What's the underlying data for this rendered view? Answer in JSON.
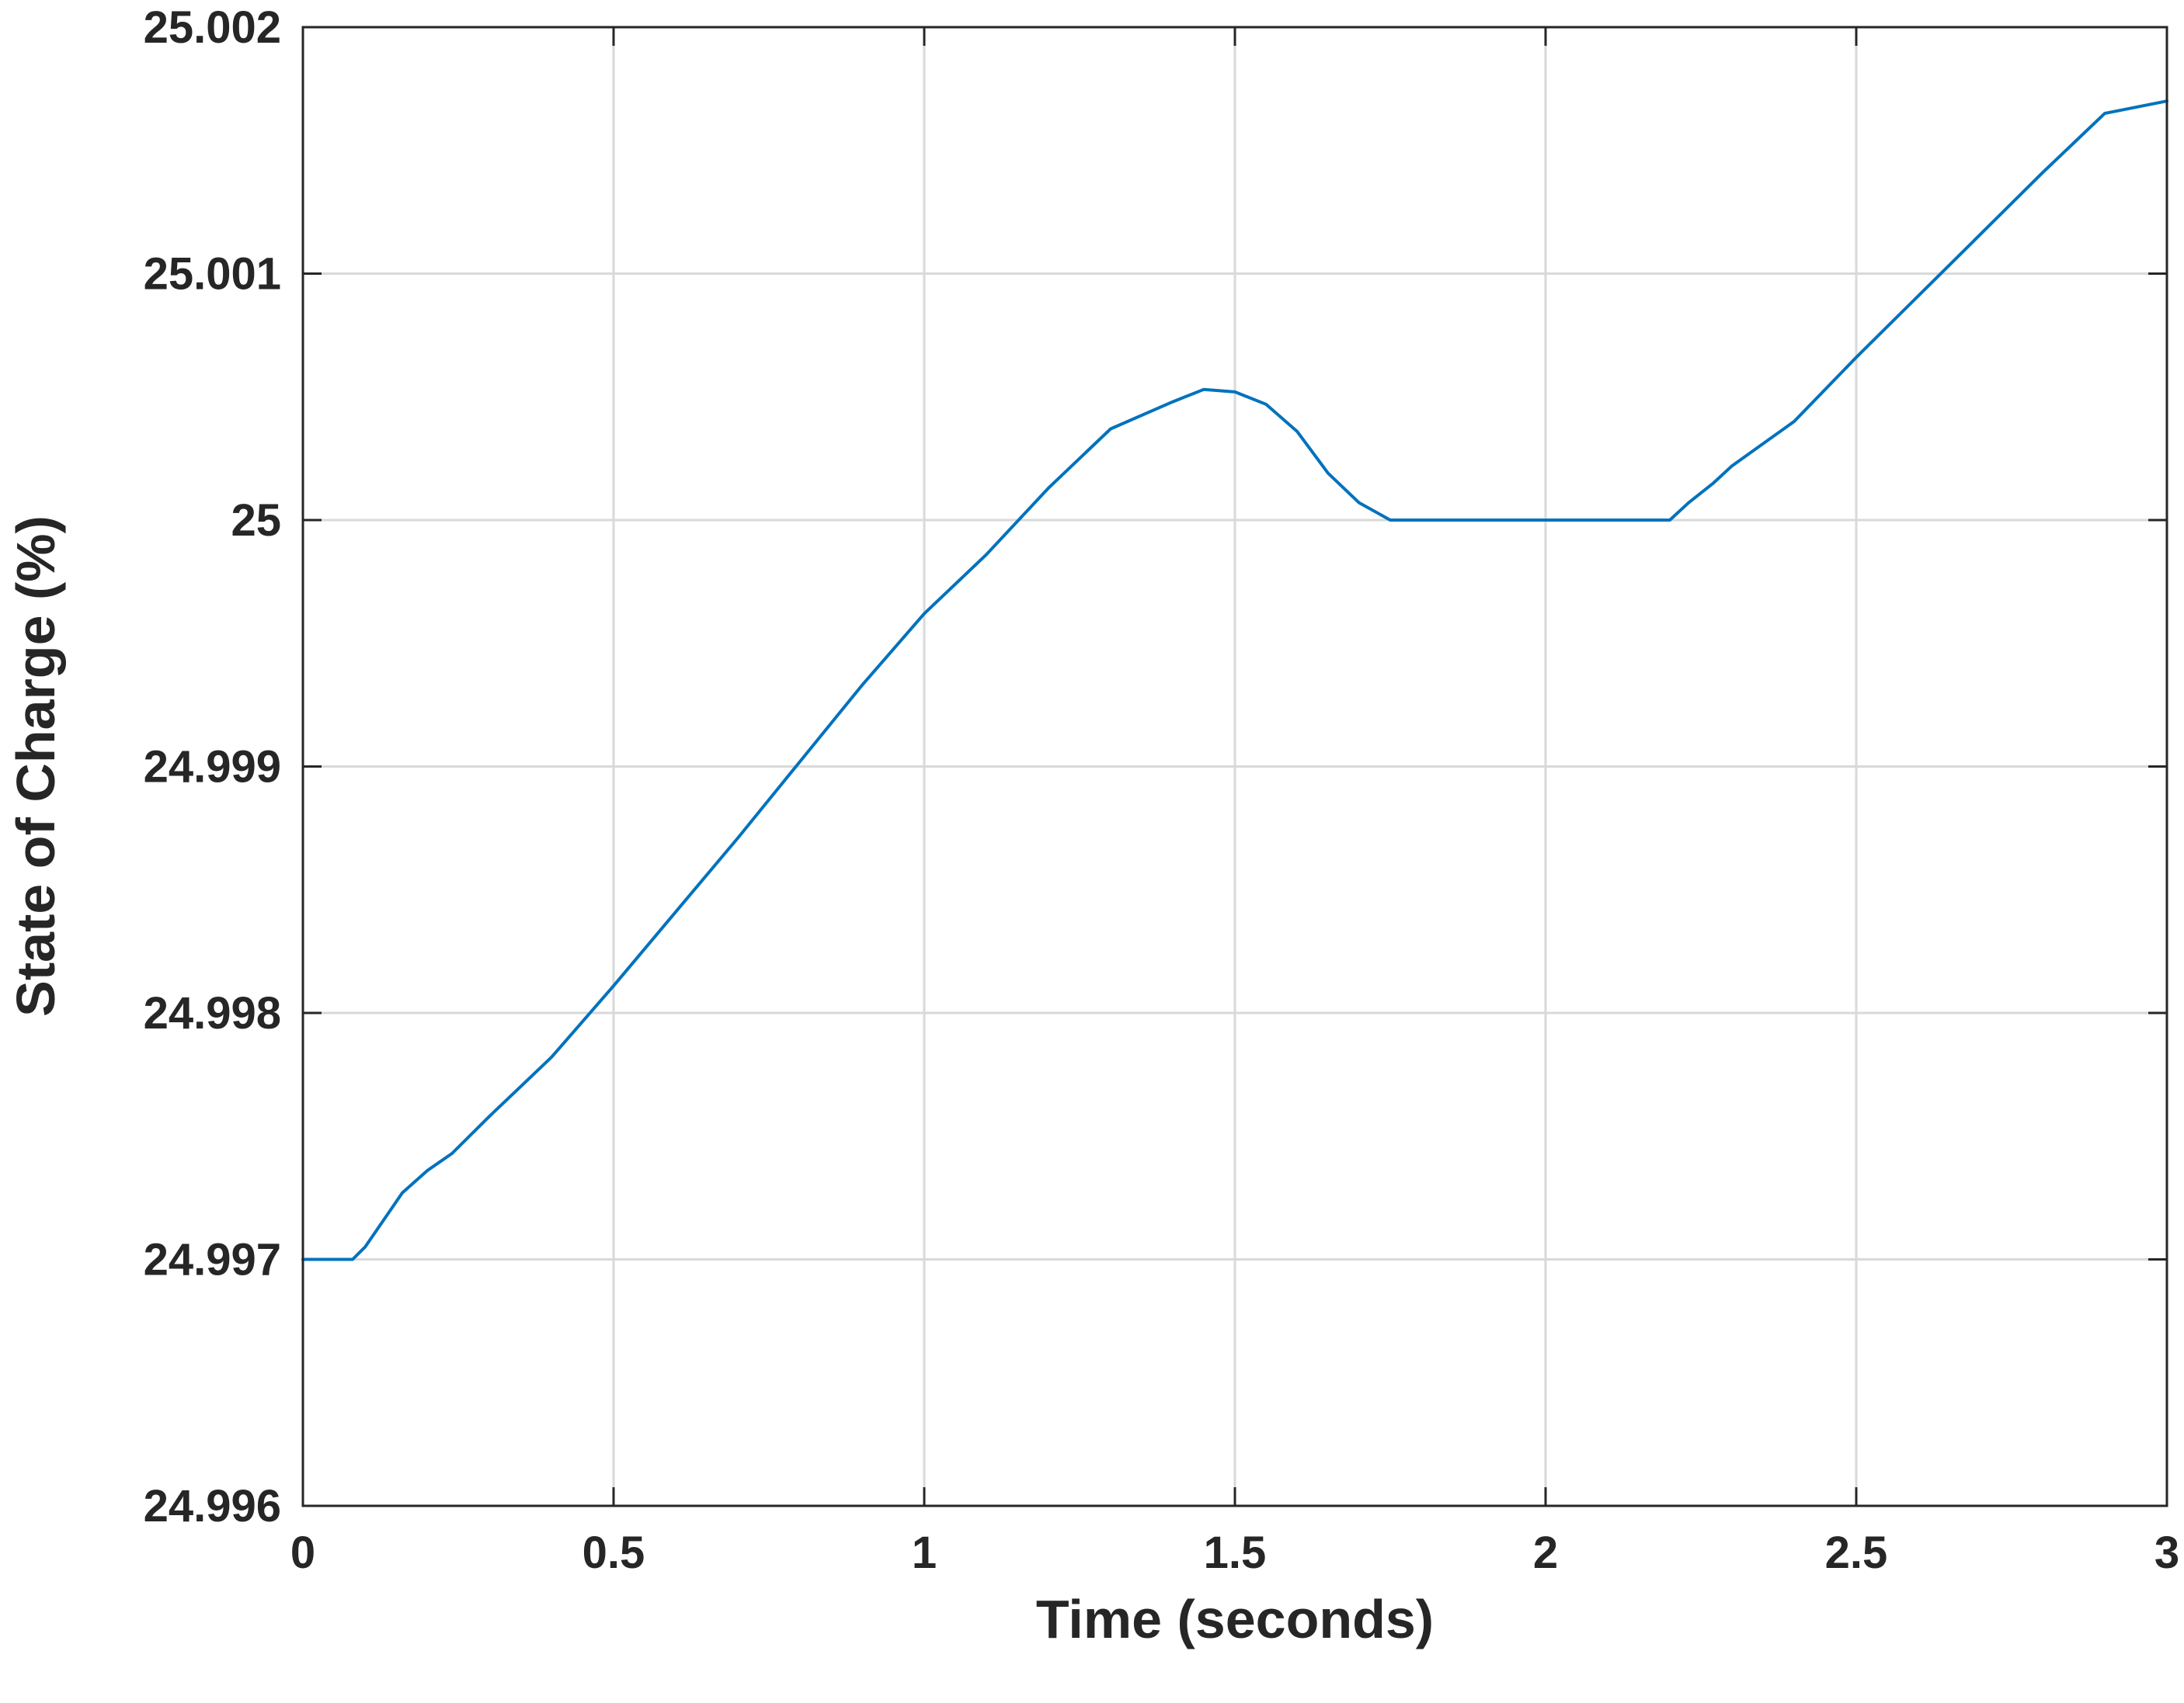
{
  "chart_data": {
    "type": "line",
    "title": "",
    "xlabel": "Time (seconds)",
    "ylabel": "State of Charge (%)",
    "xlim": [
      0,
      3
    ],
    "ylim": [
      24.996,
      25.002
    ],
    "xticks": [
      0,
      0.5,
      1,
      1.5,
      2,
      2.5,
      3
    ],
    "xtick_labels": [
      "0",
      "0.5",
      "1",
      "1.5",
      "2",
      "2.5",
      "3"
    ],
    "yticks": [
      24.996,
      24.997,
      24.998,
      24.999,
      25,
      25.001,
      25.002
    ],
    "ytick_labels": [
      "24.996",
      "24.997",
      "24.998",
      "24.999",
      "25",
      "25.001",
      "25.002"
    ],
    "grid": true,
    "series": [
      {
        "color": "#0072bd",
        "x": [
          0,
          0.05,
          0.08,
          0.1,
          0.13,
          0.16,
          0.2,
          0.24,
          0.3,
          0.4,
          0.5,
          0.6,
          0.7,
          0.8,
          0.9,
          1.0,
          1.1,
          1.2,
          1.3,
          1.4,
          1.45,
          1.5,
          1.55,
          1.6,
          1.65,
          1.7,
          1.75,
          1.8,
          1.9,
          2.0,
          2.1,
          2.2,
          2.23,
          2.27,
          2.3,
          2.4,
          2.5,
          2.6,
          2.7,
          2.8,
          2.9,
          3.0
        ],
        "y": [
          24.997,
          24.997,
          24.997,
          24.99705,
          24.99716,
          24.99727,
          24.99736,
          24.99743,
          24.99758,
          24.99782,
          24.99811,
          24.99841,
          24.99871,
          24.99902,
          24.99933,
          24.99962,
          24.99986,
          25.00013,
          25.00037,
          25.00048,
          25.00053,
          25.00052,
          25.00047,
          25.00036,
          25.00019,
          25.00007,
          25.0,
          25.0,
          25.0,
          25.0,
          25.0,
          25.0,
          25.00007,
          25.00015,
          25.00022,
          25.0004,
          25.00066,
          25.00091,
          25.00116,
          25.00141,
          25.00165,
          25.0017
        ]
      }
    ]
  }
}
